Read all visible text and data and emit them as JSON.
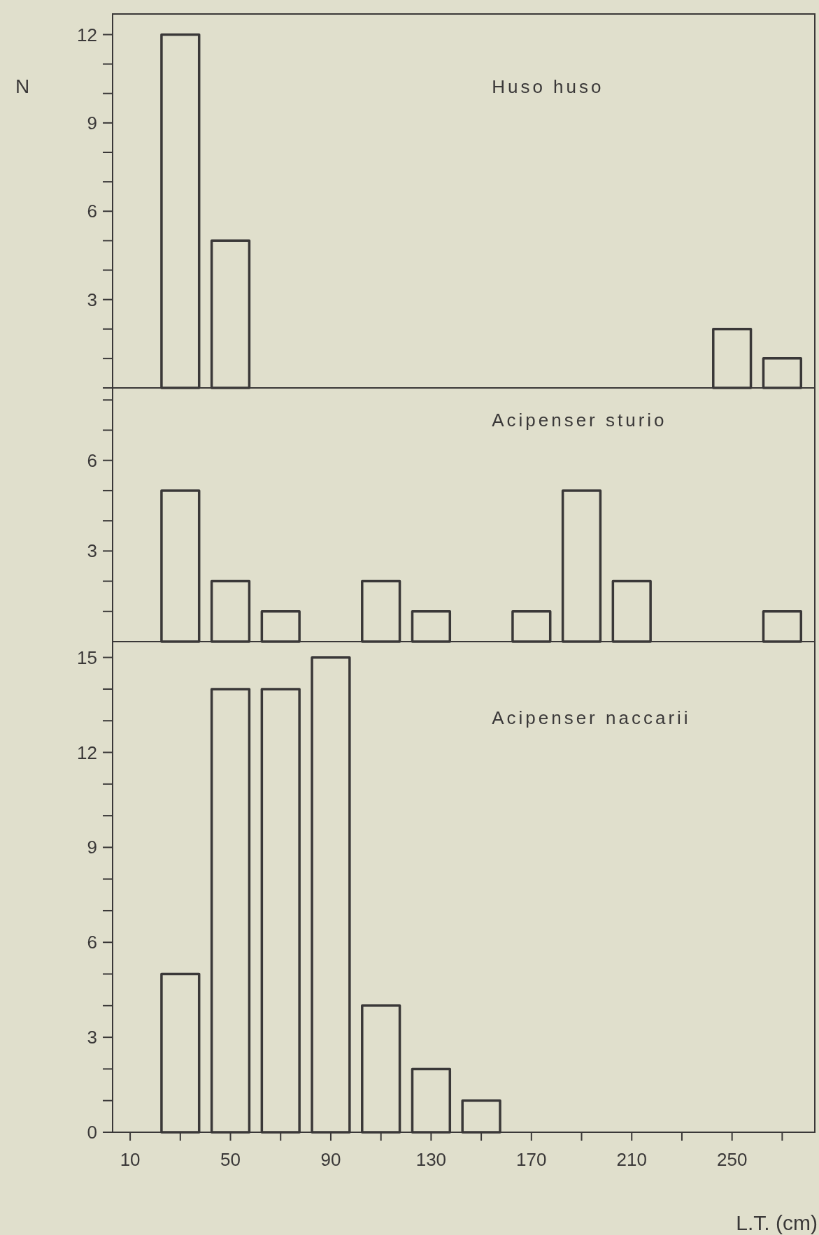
{
  "chart_data": [
    {
      "type": "bar",
      "title": "Huso huso",
      "ylabel": "N",
      "x": [
        30,
        50,
        250,
        270
      ],
      "values": [
        12,
        5,
        2,
        1
      ],
      "color": "#3a3838",
      "xlim": [
        3,
        283
      ],
      "ylim": [
        0,
        12.7
      ],
      "yticks": [
        {
          "value": 0,
          "label": null
        },
        {
          "value": 1,
          "label": null
        },
        {
          "value": 2,
          "label": null
        },
        3,
        {
          "value": 4,
          "label": null
        },
        {
          "value": 5,
          "label": null
        },
        6,
        {
          "value": 7,
          "label": null
        },
        {
          "value": 8,
          "label": null
        },
        9,
        {
          "value": 10,
          "label": null
        },
        {
          "value": 11,
          "label": null
        },
        12
      ],
      "tick_labels": "y"
    },
    {
      "type": "bar",
      "title": "Acipenser sturio",
      "x": [
        30,
        50,
        70,
        110,
        130,
        170,
        190,
        210,
        270
      ],
      "values": [
        5,
        2,
        1,
        2,
        1,
        1,
        5,
        2,
        1
      ],
      "color": "#3a3838",
      "xlim": [
        3,
        283
      ],
      "ylim": [
        0,
        8.4
      ],
      "yticks": [
        {
          "value": 1,
          "label": null
        },
        {
          "value": 2,
          "label": null
        },
        3,
        {
          "value": 4,
          "label": null
        },
        {
          "value": 5,
          "label": null
        },
        6,
        {
          "value": 7,
          "label": null
        },
        {
          "value": 8,
          "label": null
        }
      ],
      "tick_labels": "y"
    },
    {
      "type": "bar",
      "title": "Acipenser naccarii",
      "xlabel": "L.T. (cm)",
      "x": [
        30,
        50,
        70,
        90,
        110,
        130,
        150
      ],
      "values": [
        5,
        14,
        14,
        15,
        4,
        2,
        1
      ],
      "color": "#3a3838",
      "xlim": [
        3,
        283
      ],
      "xticks": [
        10,
        {
          "value": 30,
          "label": null
        },
        50,
        {
          "value": 70,
          "label": null
        },
        90,
        {
          "value": 110,
          "label": null
        },
        130,
        {
          "value": 150,
          "label": null
        },
        170,
        {
          "value": 190,
          "label": null
        },
        210,
        {
          "value": 230,
          "label": null
        },
        250,
        {
          "value": 270,
          "label": null
        }
      ],
      "ylim": [
        0,
        15.5
      ],
      "yticks": [
        0,
        {
          "value": 1,
          "label": null
        },
        {
          "value": 2,
          "label": null
        },
        3,
        {
          "value": 4,
          "label": null
        },
        {
          "value": 5,
          "label": null
        },
        6,
        {
          "value": 7,
          "label": null
        },
        {
          "value": 8,
          "label": null
        },
        9,
        {
          "value": 10,
          "label": null
        },
        {
          "value": 11,
          "label": null
        },
        12,
        {
          "value": 13,
          "label": null
        },
        {
          "value": 14,
          "label": null
        },
        15
      ]
    }
  ]
}
